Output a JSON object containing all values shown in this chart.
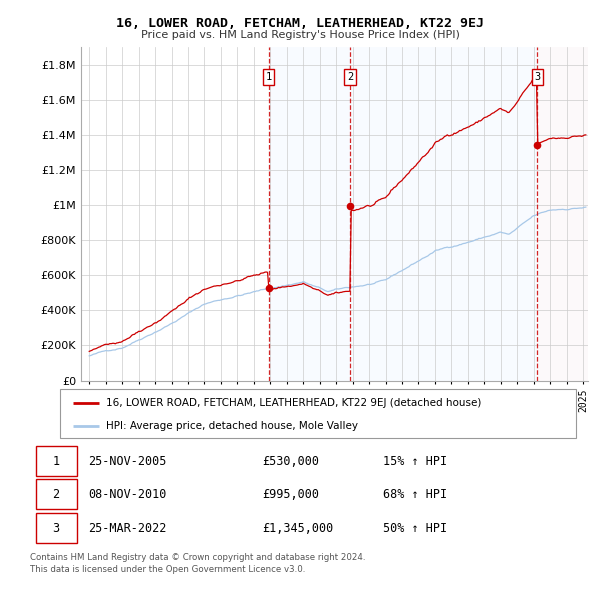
{
  "title": "16, LOWER ROAD, FETCHAM, LEATHERHEAD, KT22 9EJ",
  "subtitle": "Price paid vs. HM Land Registry's House Price Index (HPI)",
  "legend_line1": "16, LOWER ROAD, FETCHAM, LEATHERHEAD, KT22 9EJ (detached house)",
  "legend_line2": "HPI: Average price, detached house, Mole Valley",
  "footnote1": "Contains HM Land Registry data © Crown copyright and database right 2024.",
  "footnote2": "This data is licensed under the Open Government Licence v3.0.",
  "sales": [
    {
      "num": 1,
      "date": "25-NOV-2005",
      "price": "£530,000",
      "hpi": "15% ↑ HPI",
      "x": 2005.9
    },
    {
      "num": 2,
      "date": "08-NOV-2010",
      "price": "£995,000",
      "hpi": "68% ↑ HPI",
      "x": 2010.85
    },
    {
      "num": 3,
      "date": "25-MAR-2022",
      "price": "£1,345,000",
      "hpi": "50% ↑ HPI",
      "x": 2022.23
    }
  ],
  "sale_prices": [
    530000,
    995000,
    1345000
  ],
  "hpi_color": "#a8c8e8",
  "price_color": "#cc0000",
  "vline_color": "#cc0000",
  "dot_color": "#cc0000",
  "shade_color": "#ddeeff",
  "shade_last_color": "#f0e0e8",
  "ylim": [
    0,
    1900000
  ],
  "yticks": [
    0,
    200000,
    400000,
    600000,
    800000,
    1000000,
    1200000,
    1400000,
    1600000,
    1800000
  ],
  "xlim_start": 1994.5,
  "xlim_end": 2025.3
}
